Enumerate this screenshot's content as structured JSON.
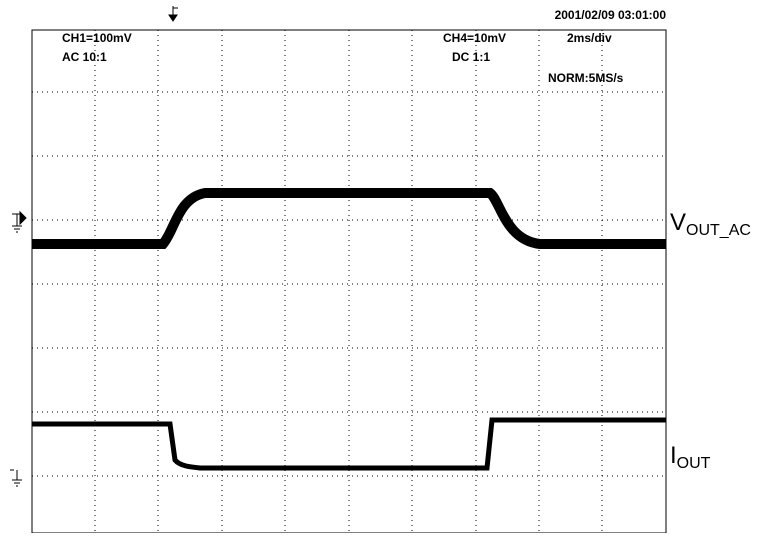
{
  "header": {
    "timestamp": "2001/02/09  03:01:00"
  },
  "ch1": {
    "scale": "CH1=100mV",
    "coupling": "AC  10:1"
  },
  "ch4": {
    "scale": "CH4=10mV",
    "coupling": "DC  1:1"
  },
  "timebase": {
    "scale": "2ms/div",
    "mode": "NORM:5MS/s"
  },
  "traces": [
    {
      "main": "V",
      "sub": "OUT_AC"
    },
    {
      "main": "I",
      "sub": "OUT"
    }
  ]
}
